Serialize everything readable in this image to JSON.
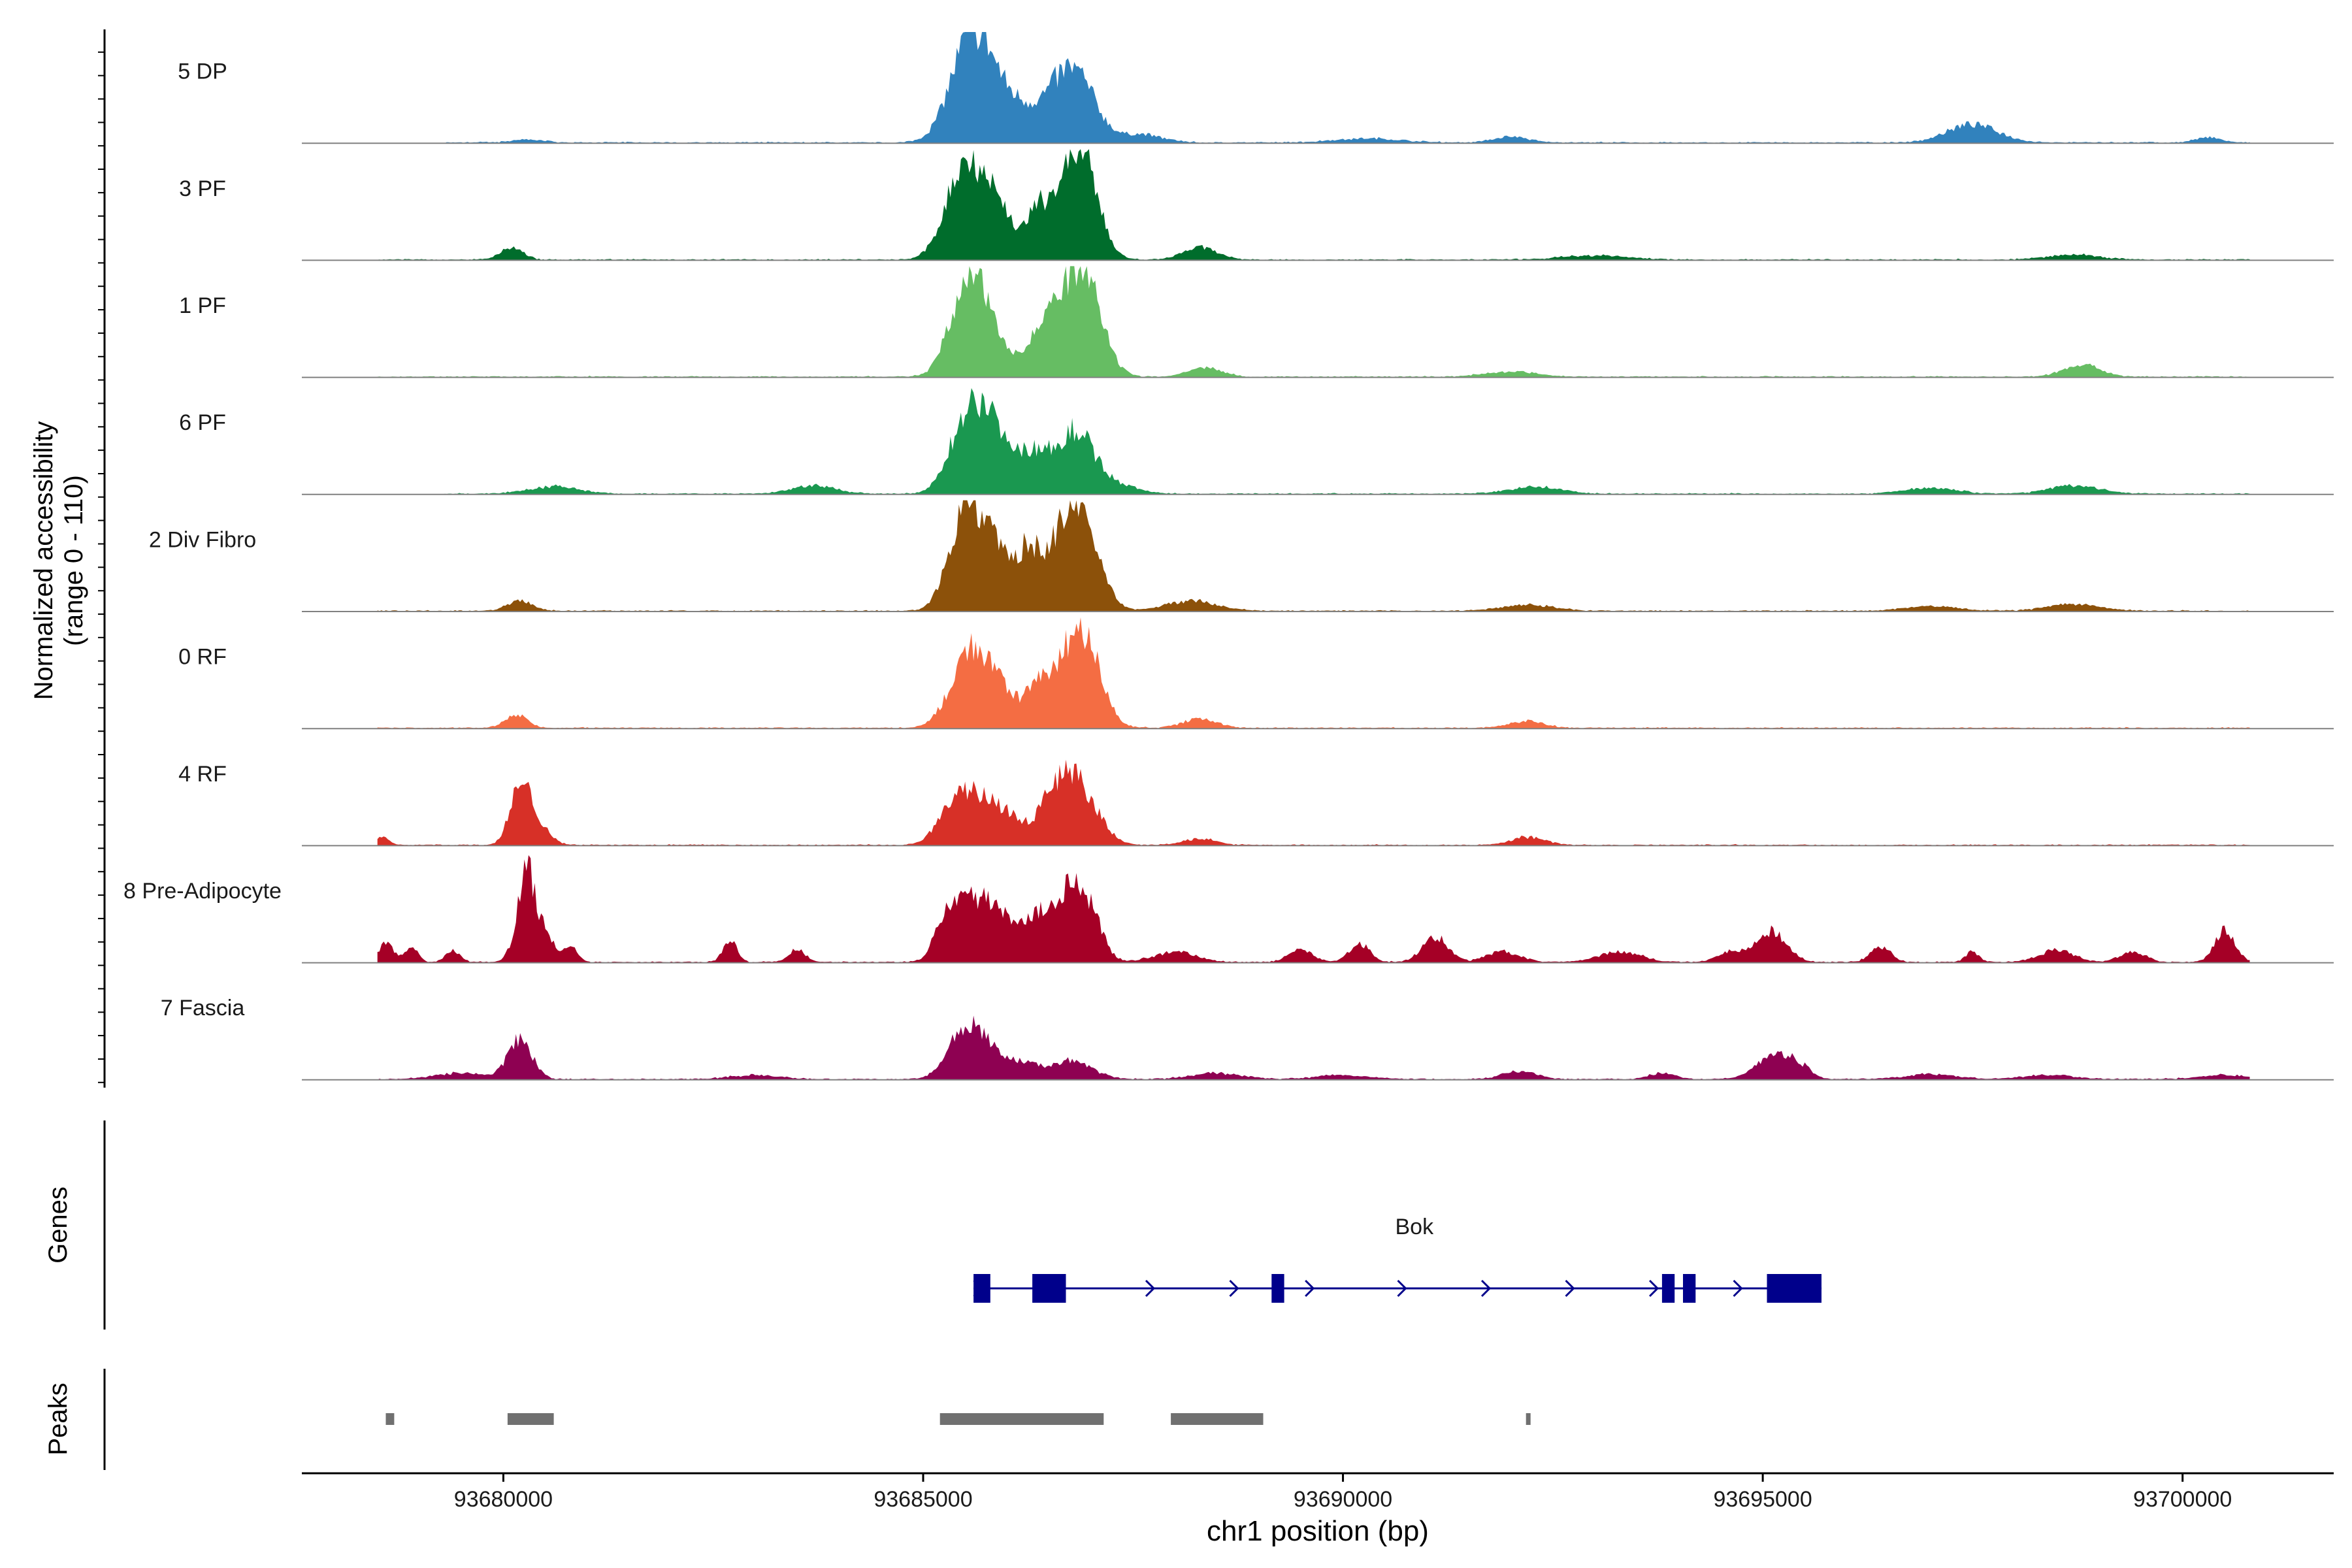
{
  "chart_data": {
    "type": "area",
    "title": "",
    "xlabel": "chr1 position (bp)",
    "ylabel_line1": "Normalized accessibility",
    "ylabel_line2": "(range 0 - 110)",
    "genes_label": "Genes",
    "peaks_label": "Peaks",
    "xlim": [
      93677600,
      93701800
    ],
    "ylim": [
      0,
      110
    ],
    "x_ticks": [
      93680000,
      93685000,
      93690000,
      93695000,
      93700000
    ],
    "x_tick_labels": [
      "93680000",
      "93685000",
      "93690000",
      "93695000",
      "93700000"
    ],
    "region": {
      "start": 93678500,
      "end": 93700800
    },
    "tracks": [
      {
        "name": "5 DP",
        "color": "#3182bd",
        "start": 93679300,
        "peaks": [
          [
            93680300,
            3,
            180
          ],
          [
            93685550,
            85,
            240
          ],
          [
            93685800,
            40,
            250
          ],
          [
            93686200,
            22,
            200
          ],
          [
            93686650,
            48,
            230
          ],
          [
            93686900,
            38,
            220
          ],
          [
            93687600,
            8,
            250
          ],
          [
            93690300,
            4,
            400
          ],
          [
            93692000,
            6,
            200
          ],
          [
            93697500,
            18,
            300
          ],
          [
            93700300,
            5,
            150
          ]
        ]
      },
      {
        "name": "3 PF",
        "color": "#006d2c",
        "start": 93678500,
        "peaks": [
          [
            93680100,
            12,
            130
          ],
          [
            93685300,
            15,
            180
          ],
          [
            93685500,
            75,
            200
          ],
          [
            93685850,
            55,
            220
          ],
          [
            93686350,
            30,
            120
          ],
          [
            93686700,
            70,
            220
          ],
          [
            93686950,
            60,
            180
          ],
          [
            93688300,
            12,
            200
          ],
          [
            93693000,
            4,
            400
          ],
          [
            93698700,
            5,
            300
          ]
        ]
      },
      {
        "name": "1 PF",
        "color": "#66bd63",
        "start": 93678500,
        "peaks": [
          [
            93685500,
            78,
            200
          ],
          [
            93685800,
            45,
            220
          ],
          [
            93686350,
            20,
            120
          ],
          [
            93686650,
            60,
            230
          ],
          [
            93686950,
            75,
            200
          ],
          [
            93688350,
            9,
            200
          ],
          [
            93692000,
            5,
            300
          ],
          [
            93698800,
            12,
            220
          ]
        ]
      },
      {
        "name": "6 PF",
        "color": "#1a9850",
        "start": 93679300,
        "peaks": [
          [
            93680600,
            7,
            300
          ],
          [
            93683700,
            8,
            250
          ],
          [
            93685400,
            30,
            180
          ],
          [
            93685650,
            75,
            200
          ],
          [
            93686050,
            42,
            220
          ],
          [
            93686400,
            22,
            120
          ],
          [
            93686800,
            62,
            230
          ],
          [
            93687300,
            8,
            250
          ],
          [
            93692300,
            7,
            300
          ],
          [
            93697000,
            6,
            300
          ],
          [
            93698700,
            8,
            300
          ]
        ]
      },
      {
        "name": "2 Div Fibro",
        "color": "#8c510a",
        "start": 93678500,
        "peaks": [
          [
            93680200,
            10,
            150
          ],
          [
            93685500,
            88,
            200
          ],
          [
            93685850,
            55,
            230
          ],
          [
            93686250,
            40,
            120
          ],
          [
            93686650,
            70,
            230
          ],
          [
            93686950,
            55,
            200
          ],
          [
            93688200,
            10,
            300
          ],
          [
            93692200,
            6,
            300
          ],
          [
            93697000,
            5,
            300
          ],
          [
            93698700,
            7,
            300
          ]
        ]
      },
      {
        "name": "0 RF",
        "color": "#f46d43",
        "start": 93678500,
        "peaks": [
          [
            93680150,
            13,
            130
          ],
          [
            93685400,
            20,
            200
          ],
          [
            93685600,
            60,
            200
          ],
          [
            93685950,
            32,
            200
          ],
          [
            93686350,
            25,
            120
          ],
          [
            93686700,
            55,
            230
          ],
          [
            93686950,
            60,
            200
          ],
          [
            93688300,
            9,
            200
          ],
          [
            93692200,
            7,
            200
          ]
        ]
      },
      {
        "name": "4 RF",
        "color": "#d73027",
        "start": 93678500,
        "peaks": [
          [
            93678550,
            9,
            80
          ],
          [
            93680200,
            58,
            120
          ],
          [
            93680400,
            18,
            150
          ],
          [
            93685400,
            42,
            200
          ],
          [
            93685750,
            38,
            200
          ],
          [
            93686100,
            22,
            150
          ],
          [
            93686450,
            30,
            120
          ],
          [
            93686700,
            55,
            150
          ],
          [
            93686950,
            38,
            200
          ],
          [
            93688300,
            6,
            200
          ],
          [
            93692200,
            8,
            200
          ]
        ]
      },
      {
        "name": "8 Pre-Adipocyte",
        "color": "#a50026",
        "start": 93678500,
        "peaks": [
          [
            93678600,
            20,
            80
          ],
          [
            93678900,
            15,
            80
          ],
          [
            93679400,
            12,
            80
          ],
          [
            93680200,
            30,
            100
          ],
          [
            93680300,
            68,
            90
          ],
          [
            93680500,
            30,
            100
          ],
          [
            93680800,
            15,
            80
          ],
          [
            93682700,
            22,
            80
          ],
          [
            93683500,
            12,
            100
          ],
          [
            93685300,
            45,
            150
          ],
          [
            93685650,
            55,
            200
          ],
          [
            93686000,
            35,
            200
          ],
          [
            93686400,
            45,
            150
          ],
          [
            93686750,
            70,
            150
          ],
          [
            93687000,
            40,
            150
          ],
          [
            93688000,
            10,
            250
          ],
          [
            93689500,
            12,
            150
          ],
          [
            93690200,
            18,
            120
          ],
          [
            93691100,
            25,
            150
          ],
          [
            93691900,
            10,
            200
          ],
          [
            93693300,
            10,
            250
          ],
          [
            93694600,
            10,
            150
          ],
          [
            93695100,
            30,
            180
          ],
          [
            93696400,
            15,
            120
          ],
          [
            93697500,
            10,
            80
          ],
          [
            93698500,
            12,
            200
          ],
          [
            93699400,
            10,
            150
          ],
          [
            93700500,
            32,
            120
          ]
        ]
      },
      {
        "name": "7 Fascia",
        "color": "#8e0152",
        "start": 93678500,
        "peaks": [
          [
            93679500,
            6,
            300
          ],
          [
            93680200,
            40,
            140
          ],
          [
            93683000,
            4,
            300
          ],
          [
            93685500,
            48,
            200
          ],
          [
            93685800,
            20,
            200
          ],
          [
            93686200,
            14,
            150
          ],
          [
            93686750,
            18,
            250
          ],
          [
            93688500,
            6,
            300
          ],
          [
            93690000,
            4,
            300
          ],
          [
            93692100,
            8,
            200
          ],
          [
            93693800,
            6,
            150
          ],
          [
            93695100,
            20,
            200
          ],
          [
            93695400,
            14,
            150
          ],
          [
            93697000,
            5,
            300
          ],
          [
            93698400,
            4,
            300
          ],
          [
            93700500,
            4,
            300
          ]
        ]
      }
    ],
    "gene": {
      "name": "Bok",
      "start": 93685600,
      "end": 93695700,
      "strand": "+",
      "exons": [
        [
          93685600,
          93685800
        ],
        [
          93686300,
          93686700
        ],
        [
          93689150,
          93689300
        ],
        [
          93693800,
          93693950
        ],
        [
          93694050,
          93694200
        ],
        [
          93695050,
          93695700
        ]
      ],
      "arrows": [
        93685650,
        93687700,
        93688700,
        93690700,
        93691700,
        93692700,
        93693700,
        93694700,
        93689600
      ]
    },
    "peaks_track": [
      [
        93678600,
        93678700
      ],
      [
        93680050,
        93680600
      ],
      [
        93685200,
        93687150
      ],
      [
        93687950,
        93689050
      ],
      [
        93692180,
        93692220
      ]
    ]
  }
}
